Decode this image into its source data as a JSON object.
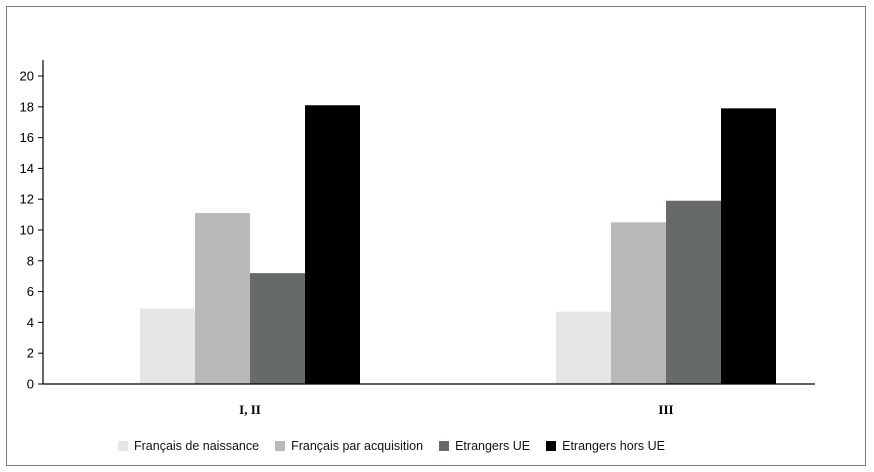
{
  "chart_data": {
    "type": "bar",
    "categories": [
      "I, II",
      "III"
    ],
    "series": [
      {
        "name": "Français de naissance",
        "values": [
          4.9,
          4.7
        ],
        "color": "#e6e6e6"
      },
      {
        "name": "Français par acquisition",
        "values": [
          11.1,
          10.5
        ],
        "color": "#b9b9b9"
      },
      {
        "name": "Etrangers UE",
        "values": [
          7.2,
          11.9
        ],
        "color": "#656a6b"
      },
      {
        "name": "Etrangers hors UE",
        "values": [
          18.1,
          17.9
        ],
        "color": "#000000"
      }
    ],
    "ylim": [
      0,
      20
    ],
    "yticks": [
      0,
      2,
      4,
      6,
      8,
      10,
      12,
      14,
      16,
      18,
      20
    ],
    "title": "",
    "xlabel": "",
    "ylabel": "",
    "grid": false,
    "legend_position": "bottom"
  }
}
